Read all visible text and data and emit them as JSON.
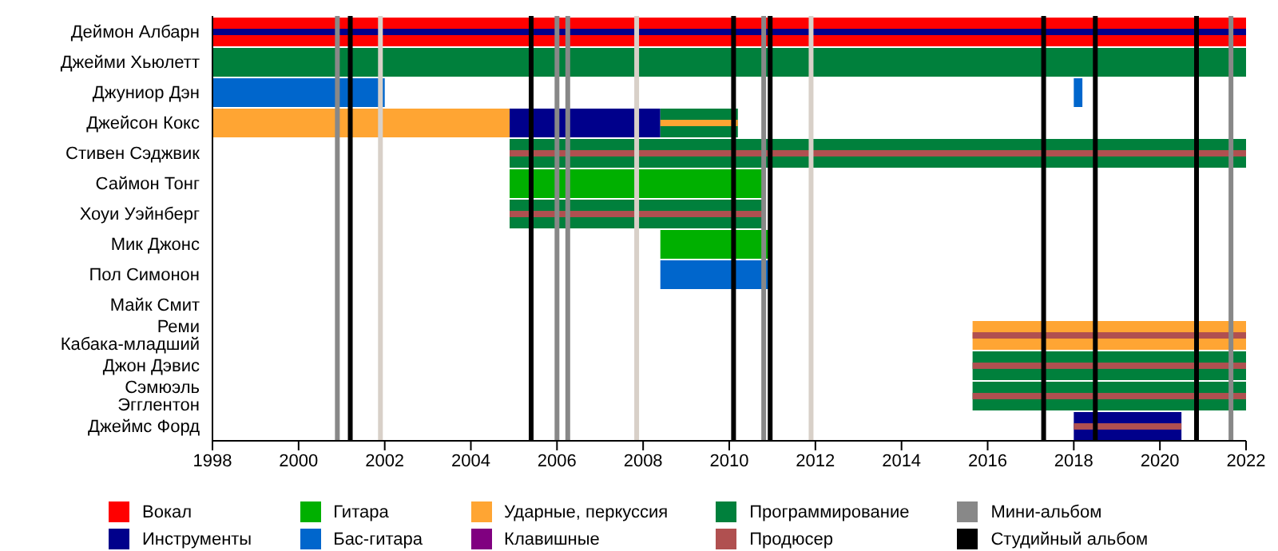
{
  "chart_data": {
    "type": "bar",
    "orientation": "horizontal",
    "categories": [
      "Деймон Албарн",
      "Джейми Хьюлетт",
      "Джуниор Дэн",
      "Джейсон Кокс",
      "Стивен Сэджвик",
      "Саймон Тонг",
      "Хоуи Уэйнберг",
      "Мик Джонс",
      "Пол Симонон",
      "Майк Смит",
      "Реми Кабака-младший",
      "Джон Дэвис",
      "Сэмюэль Эгглентон",
      "Джеймс Форд"
    ],
    "xlim": [
      1998,
      2022
    ],
    "xticks": [
      1998,
      2000,
      2002,
      2004,
      2006,
      2008,
      2010,
      2012,
      2014,
      2016,
      2018,
      2020,
      2022
    ],
    "legend": "bottom",
    "grid": false,
    "series": [
      {
        "name": "Вокал",
        "color": "#ff0000",
        "base": [
          1998,
          null,
          null,
          null,
          null,
          null,
          null,
          null,
          null,
          null,
          null,
          null,
          null,
          null
        ],
        "values": [
          24,
          null,
          null,
          null,
          null,
          null,
          null,
          null,
          null,
          null,
          null,
          null,
          null,
          null
        ]
      },
      {
        "name": "Инструменты",
        "color": "#00008b",
        "base": [
          1998,
          null,
          null,
          2004.9,
          null,
          null,
          null,
          null,
          null,
          null,
          null,
          null,
          null,
          2018
        ],
        "values": [
          24,
          null,
          null,
          3.5,
          null,
          null,
          null,
          null,
          null,
          null,
          null,
          null,
          null,
          2.5
        ]
      },
      {
        "name": "Гитара",
        "color": "#00b000",
        "base": [
          null,
          null,
          null,
          null,
          null,
          2004.9,
          null,
          2008.4,
          null,
          null,
          null,
          null,
          null,
          null
        ],
        "values": [
          null,
          null,
          null,
          null,
          null,
          5.9,
          null,
          2.6,
          null,
          null,
          null,
          null,
          null,
          null
        ]
      },
      {
        "name": "Бас-гитара",
        "color": "#0066cc",
        "base": [
          null,
          null,
          1998,
          null,
          null,
          null,
          null,
          null,
          2008.4,
          null,
          null,
          null,
          null,
          null
        ],
        "values": [
          null,
          null,
          4,
          null,
          null,
          null,
          null,
          null,
          2.6,
          null,
          null,
          null,
          null,
          null
        ]
      },
      {
        "color": "#0066cc",
        "base": [
          null,
          null,
          2018,
          null,
          null,
          null,
          null,
          null,
          null,
          null,
          null,
          null,
          null,
          null
        ],
        "values": [
          null,
          null,
          0.2,
          null,
          null,
          null,
          null,
          null,
          null,
          null,
          null,
          null,
          null,
          null
        ]
      },
      {
        "name": "Ударные, перкуссия",
        "color": "#ffa533",
        "base": [
          null,
          null,
          null,
          1998,
          null,
          null,
          null,
          null,
          null,
          null,
          2015.65,
          null,
          null,
          null
        ],
        "values": [
          null,
          null,
          null,
          6.9,
          null,
          null,
          null,
          null,
          null,
          null,
          6.35,
          null,
          null,
          null
        ]
      },
      {
        "name": "Клавишные",
        "color": "#800080",
        "base": [
          null,
          null,
          null,
          null,
          null,
          null,
          null,
          null,
          null,
          null,
          null,
          null,
          null,
          null
        ],
        "values": [
          null,
          null,
          null,
          null,
          null,
          null,
          null,
          null,
          null,
          null,
          null,
          null,
          null,
          null
        ]
      },
      {
        "name": "Программирование",
        "color": "#00803c",
        "base": [
          null,
          1998,
          null,
          2008.4,
          2004.9,
          null,
          2004.9,
          null,
          null,
          null,
          null,
          2015.65,
          2015.65,
          null
        ],
        "values": [
          null,
          24,
          null,
          1.8,
          17.1,
          null,
          5.9,
          null,
          null,
          null,
          null,
          6.35,
          6.35,
          null
        ]
      },
      {
        "color": "#ffa533",
        "base": [
          null,
          null,
          null,
          2008.4,
          null,
          null,
          null,
          null,
          null,
          null,
          null,
          null,
          null,
          null
        ],
        "values": [
          null,
          null,
          null,
          1.8,
          null,
          null,
          null,
          null,
          null,
          null,
          null,
          null,
          null,
          null
        ]
      },
      {
        "name": "Продюсер",
        "color": "#b05050",
        "base": [
          null,
          null,
          null,
          null,
          2004.9,
          null,
          2004.9,
          null,
          null,
          null,
          2015.65,
          2015.65,
          2015.65,
          2018
        ],
        "values": [
          null,
          null,
          null,
          null,
          17.1,
          null,
          5.9,
          null,
          null,
          null,
          6.35,
          6.35,
          6.35,
          2.5
        ]
      }
    ],
    "ref_lines": [
      {
        "axis": "x",
        "value": 2000.9,
        "label": "Мини-альбом",
        "color": "#888888"
      },
      {
        "axis": "x",
        "value": 2006.0,
        "label": null,
        "color": "#888888"
      },
      {
        "axis": "x",
        "value": 2006.25,
        "label": null,
        "color": "#888888"
      },
      {
        "axis": "x",
        "value": 2010.8,
        "label": null,
        "color": "#888888"
      },
      {
        "axis": "x",
        "value": 2021.65,
        "label": null,
        "color": "#888888"
      },
      {
        "axis": "x",
        "value": 2001.9,
        "label": null,
        "color": "#d8d0c8"
      },
      {
        "axis": "x",
        "value": 2007.85,
        "label": null,
        "color": "#d8d0c8"
      },
      {
        "axis": "x",
        "value": 2011.9,
        "label": null,
        "color": "#d8d0c8"
      },
      {
        "axis": "x",
        "value": 2001.2,
        "label": "Студийный альбом",
        "color": "#000000"
      },
      {
        "axis": "x",
        "value": 2005.4,
        "label": null,
        "color": "#000000"
      },
      {
        "axis": "x",
        "value": 2010.1,
        "label": null,
        "color": "#000000"
      },
      {
        "axis": "x",
        "value": 2010.95,
        "label": null,
        "color": "#000000"
      },
      {
        "axis": "x",
        "value": 2017.3,
        "label": null,
        "color": "#000000"
      },
      {
        "axis": "x",
        "value": 2018.5,
        "label": null,
        "color": "#000000"
      },
      {
        "axis": "x",
        "value": 2020.85,
        "label": null,
        "color": "#000000"
      }
    ]
  }
}
